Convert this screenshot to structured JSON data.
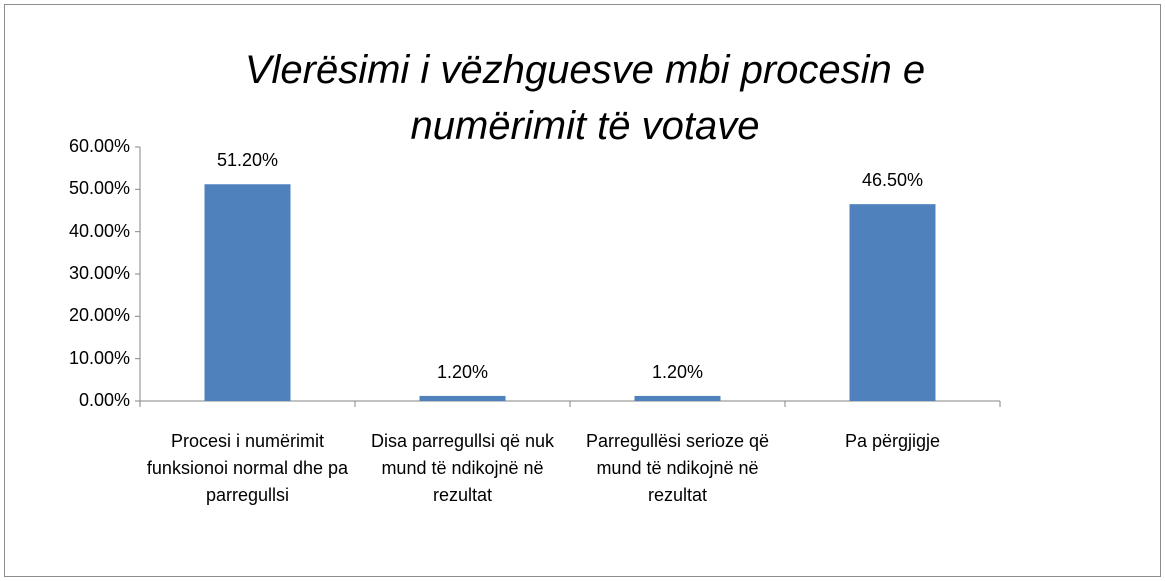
{
  "chart_data": {
    "type": "bar",
    "title": "Vlerësimi i vëzhguesve mbi procesin e numërimit të votave",
    "categories": [
      "Procesi i numërimit funksionoi normal dhe pa parregullsi",
      "Disa parregullsi që nuk mund të ndikojnë në rezultat",
      "Parregullësi serioze që mund të ndikojnë në rezultat",
      "Pa përgjigje"
    ],
    "values": [
      51.2,
      1.2,
      1.2,
      46.5
    ],
    "value_labels": [
      "51.20%",
      "1.20%",
      "1.20%",
      "46.50%"
    ],
    "color": "#4f81bd",
    "ylim": [
      0,
      60
    ],
    "yticks": [
      {
        "value": 0,
        "label": "0.00%"
      },
      {
        "value": 10,
        "label": "10.00%"
      },
      {
        "value": 20,
        "label": "20.00%"
      },
      {
        "value": 30,
        "label": "30.00%"
      },
      {
        "value": 40,
        "label": "40.00%"
      },
      {
        "value": 50,
        "label": "50.00%"
      },
      {
        "value": 60,
        "label": "60.00%"
      }
    ],
    "grid": false
  }
}
